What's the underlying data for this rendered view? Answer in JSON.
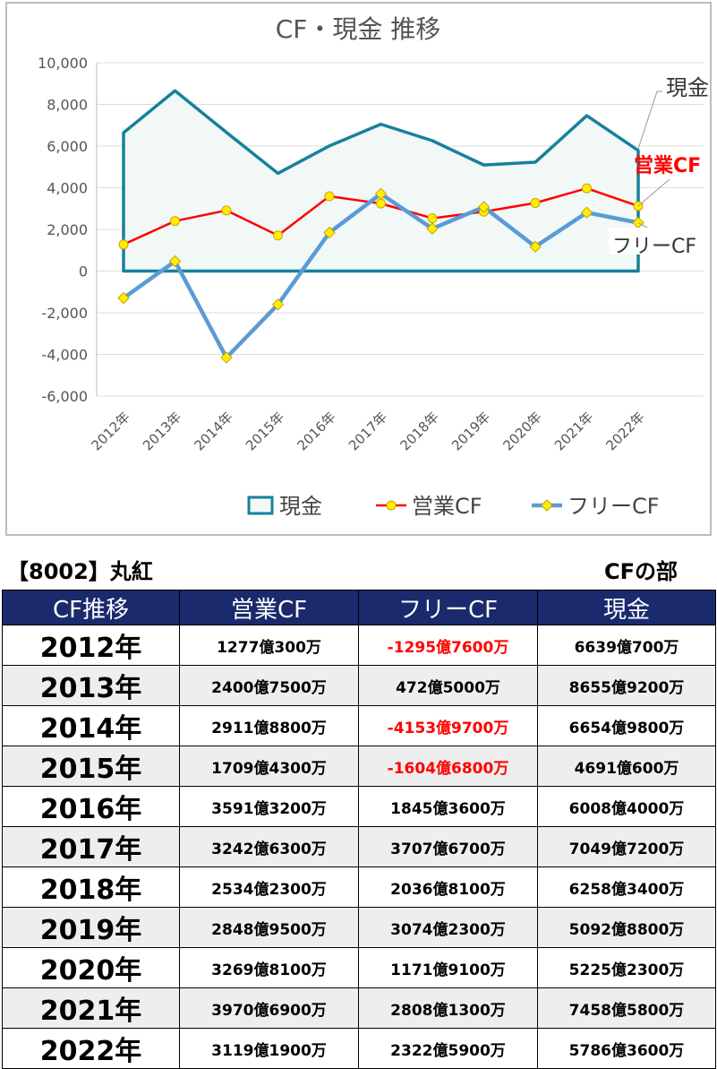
{
  "chart_data": {
    "type": "line",
    "title": "CF・現金 推移",
    "categories": [
      "2012年",
      "2013年",
      "2014年",
      "2015年",
      "2016年",
      "2017年",
      "2018年",
      "2019年",
      "2020年",
      "2021年",
      "2022年"
    ],
    "ylim": [
      -6000,
      10000
    ],
    "yticks": [
      10000,
      8000,
      6000,
      4000,
      2000,
      0,
      -2000,
      -4000,
      -6000
    ],
    "ytick_labels": [
      "10,000",
      "8,000",
      "6,000",
      "4,000",
      "2,000",
      "0",
      "-2,000",
      "-4,000",
      "-6,000"
    ],
    "grid": true,
    "legend_position": "bottom",
    "series": [
      {
        "name": "現金",
        "type": "area",
        "color": "#17819c",
        "fill": "#f1f8f6",
        "values": [
          6639,
          8655,
          6654,
          4691,
          6008,
          7049,
          6258,
          5092,
          5225,
          7458,
          5786
        ]
      },
      {
        "name": "営業CF",
        "type": "line",
        "color": "#ff0000",
        "marker": "circle",
        "values": [
          1277,
          2400,
          2911,
          1709,
          3591,
          3242,
          2534,
          2848,
          3269,
          3970,
          3119
        ]
      },
      {
        "name": "フリーCF",
        "type": "line",
        "color": "#5b9bd5",
        "marker": "diamond",
        "values": [
          -1295,
          472,
          -4153,
          -1604,
          1845,
          3707,
          2036,
          3074,
          1171,
          2808,
          2322
        ]
      }
    ],
    "annotations": [
      {
        "text": "現金",
        "series": "現金",
        "color": "#333333"
      },
      {
        "text": "営業CF",
        "series": "営業CF",
        "color": "#ff0000"
      },
      {
        "text": "フリーCF",
        "series": "フリーCF",
        "color": "#333333"
      }
    ]
  },
  "header": {
    "company": "【8002】丸紅",
    "section": "CFの部"
  },
  "table": {
    "columns": [
      "CF推移",
      "営業CF",
      "フリーCF",
      "現金"
    ],
    "rows": [
      {
        "year": "2012年",
        "operating": "1277億300万",
        "free": "-1295億7600万",
        "free_negative": true,
        "cash": "6639億700万"
      },
      {
        "year": "2013年",
        "operating": "2400億7500万",
        "free": "472億5000万",
        "free_negative": false,
        "cash": "8655億9200万"
      },
      {
        "year": "2014年",
        "operating": "2911億8800万",
        "free": "-4153億9700万",
        "free_negative": true,
        "cash": "6654億9800万"
      },
      {
        "year": "2015年",
        "operating": "1709億4300万",
        "free": "-1604億6800万",
        "free_negative": true,
        "cash": "4691億600万"
      },
      {
        "year": "2016年",
        "operating": "3591億3200万",
        "free": "1845億3600万",
        "free_negative": false,
        "cash": "6008億4000万"
      },
      {
        "year": "2017年",
        "operating": "3242億6300万",
        "free": "3707億6700万",
        "free_negative": false,
        "cash": "7049億7200万"
      },
      {
        "year": "2018年",
        "operating": "2534億2300万",
        "free": "2036億8100万",
        "free_negative": false,
        "cash": "6258億3400万"
      },
      {
        "year": "2019年",
        "operating": "2848億9500万",
        "free": "3074億2300万",
        "free_negative": false,
        "cash": "5092億8800万"
      },
      {
        "year": "2020年",
        "operating": "3269億8100万",
        "free": "1171億9100万",
        "free_negative": false,
        "cash": "5225億2300万"
      },
      {
        "year": "2021年",
        "operating": "3970億6900万",
        "free": "2808億1300万",
        "free_negative": false,
        "cash": "7458億5800万"
      },
      {
        "year": "2022年",
        "operating": "3119億1900万",
        "free": "2322億5900万",
        "free_negative": false,
        "cash": "5786億3600万"
      }
    ]
  }
}
